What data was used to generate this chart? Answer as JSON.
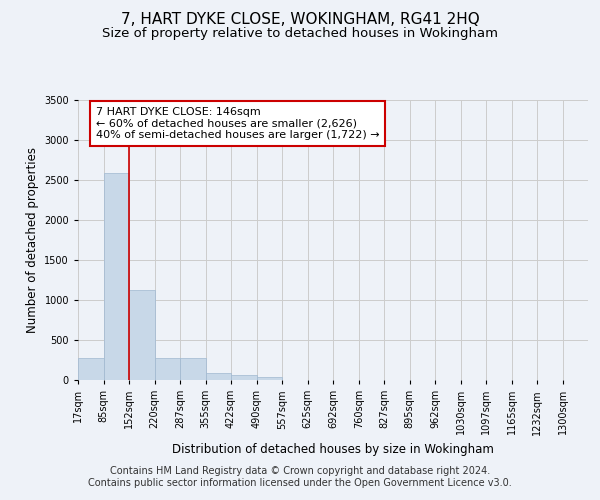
{
  "title": "7, HART DYKE CLOSE, WOKINGHAM, RG41 2HQ",
  "subtitle": "Size of property relative to detached houses in Wokingham",
  "xlabel": "Distribution of detached houses by size in Wokingham",
  "ylabel": "Number of detached properties",
  "footer_line1": "Contains HM Land Registry data © Crown copyright and database right 2024.",
  "footer_line2": "Contains public sector information licensed under the Open Government Licence v3.0.",
  "bar_edges": [
    17,
    85,
    152,
    220,
    287,
    355,
    422,
    490,
    557,
    625,
    692,
    760,
    827,
    895,
    962,
    1030,
    1097,
    1165,
    1232,
    1300,
    1367
  ],
  "bar_heights": [
    270,
    2590,
    1130,
    280,
    280,
    90,
    60,
    35,
    0,
    0,
    0,
    0,
    0,
    0,
    0,
    0,
    0,
    0,
    0,
    0
  ],
  "bar_color": "#c8d8e8",
  "bar_edgecolor": "#a0b8d0",
  "vline_x": 152,
  "vline_color": "#cc0000",
  "annotation_line1": "7 HART DYKE CLOSE: 146sqm",
  "annotation_line2": "← 60% of detached houses are smaller (2,626)",
  "annotation_line3": "40% of semi-detached houses are larger (1,722) →",
  "annotation_box_facecolor": "white",
  "annotation_box_edgecolor": "#cc0000",
  "ylim": [
    0,
    3500
  ],
  "yticks": [
    0,
    500,
    1000,
    1500,
    2000,
    2500,
    3000,
    3500
  ],
  "grid_color": "#cccccc",
  "background_color": "#eef2f8",
  "title_fontsize": 11,
  "subtitle_fontsize": 9.5,
  "axis_label_fontsize": 8.5,
  "tick_fontsize": 7,
  "annotation_fontsize": 8,
  "footer_fontsize": 7
}
